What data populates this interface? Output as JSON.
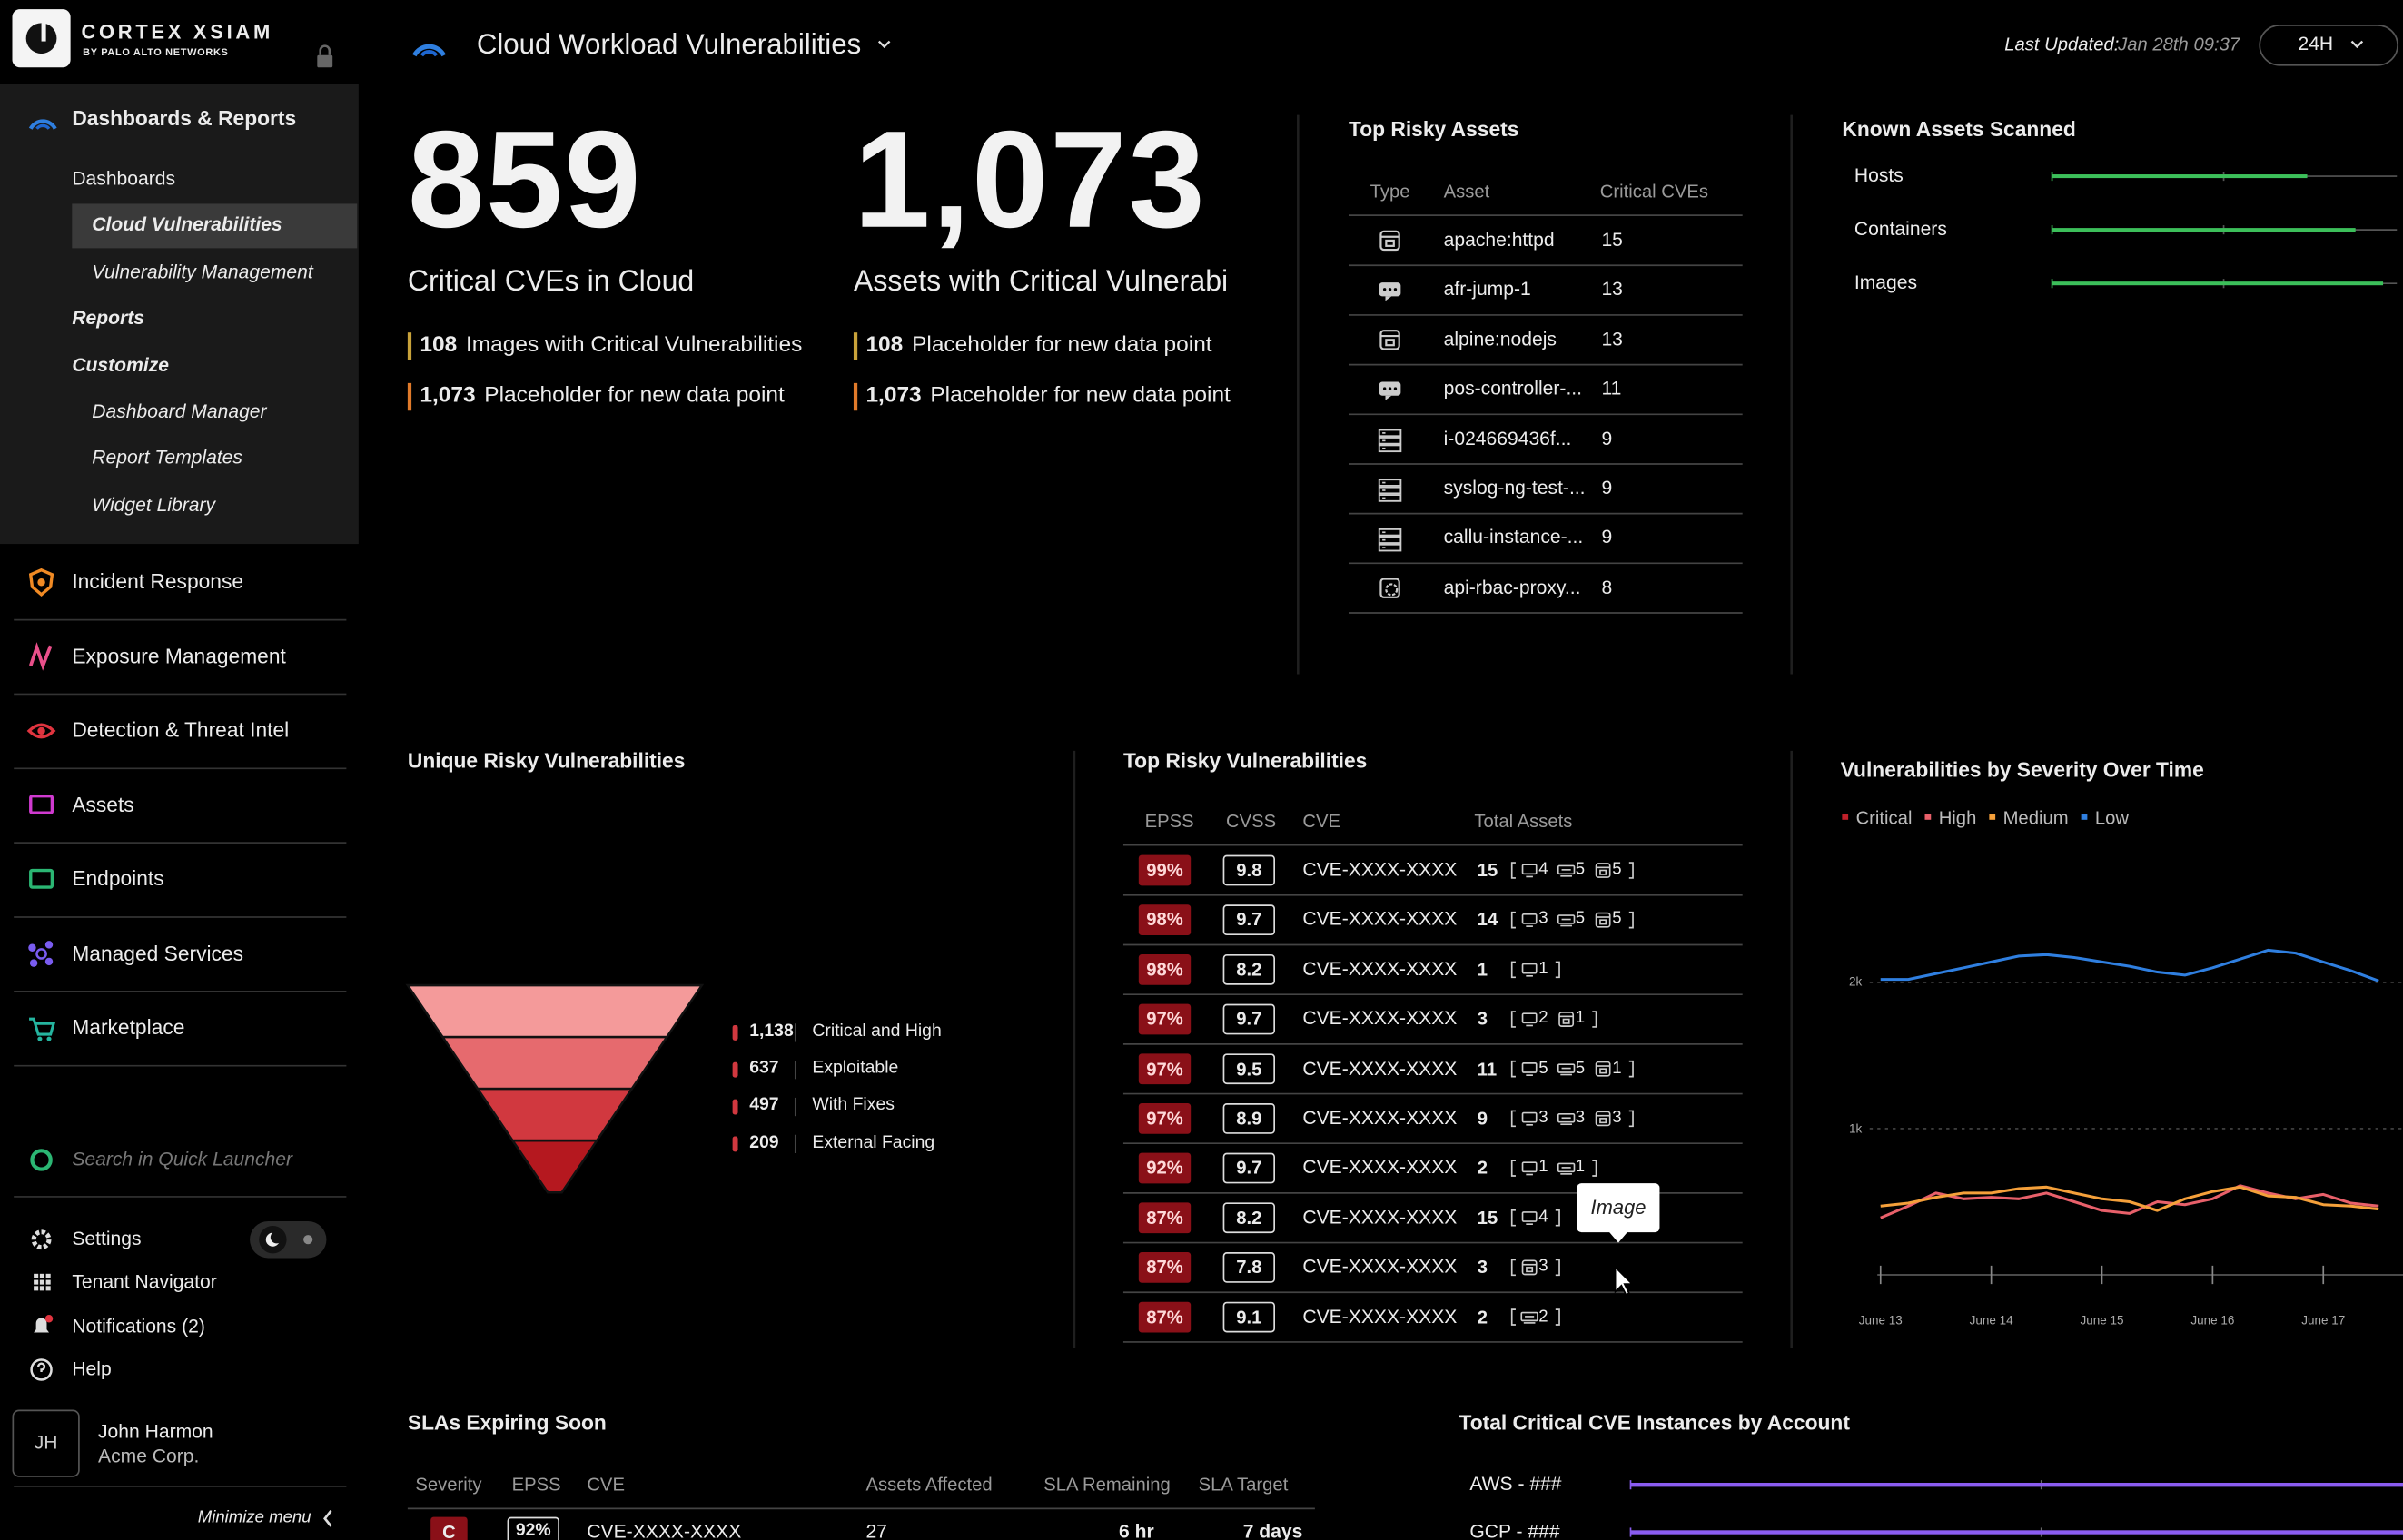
{
  "sidebar": {
    "brand": "CORTEX XSIAM",
    "brand_sub": "BY PALO ALTO NETWORKS",
    "section": "Dashboards & Reports",
    "sub_items": [
      "Dashboards",
      "Cloud Vulnerabilities",
      "Vulnerability Management",
      "Reports",
      "Customize",
      "Dashboard Manager",
      "Report Templates",
      "Widget Library"
    ],
    "nav": [
      "Incident Response",
      "Exposure Management",
      "Detection & Threat Intel",
      "Assets",
      "Endpoints",
      "Managed Services",
      "Marketplace"
    ],
    "search": "Search in Quick Launcher",
    "utilities": [
      "Settings",
      "Tenant Navigator",
      "Notifications (2)",
      "Help"
    ],
    "user": {
      "initials": "JH",
      "name": "John Harmon",
      "org": "Acme Corp."
    },
    "minimize": "Minimize menu"
  },
  "header": {
    "title": "Cloud Workload Vulnerabilities",
    "updated_label": "Last Updated:",
    "updated_value": "Jan 28th 09:37",
    "range": "24H"
  },
  "kpis": [
    {
      "value": "859",
      "label": "Critical CVEs in Cloud",
      "details": [
        {
          "value": "108",
          "label": "Images with Critical Vulnerabilities"
        },
        {
          "value": "1,073",
          "label": "Placeholder for new data point"
        }
      ]
    },
    {
      "value": "1,073",
      "label": "Assets with Critical Vulnerabi",
      "details": [
        {
          "value": "108",
          "label": "Placeholder for new data point"
        },
        {
          "value": "1,073",
          "label": "Placeholder for new data point"
        }
      ]
    }
  ],
  "top_risky_assets": {
    "title": "Top Risky Assets",
    "columns": [
      "Type",
      "Asset",
      "Critical CVEs"
    ],
    "rows": [
      [
        "apache:httpd",
        "15"
      ],
      [
        "afr-jump-1",
        "13"
      ],
      [
        "alpine:nodejs",
        "13"
      ],
      [
        "pos-controller-...",
        "11"
      ],
      [
        "i-024669436f...",
        "9"
      ],
      [
        "syslog-ng-test-...",
        "9"
      ],
      [
        "callu-instance-...",
        "9"
      ],
      [
        "api-rbac-proxy...",
        "8"
      ]
    ]
  },
  "known_assets": {
    "title": "Known Assets Scanned",
    "xlim": [
      0,
      100
    ],
    "items": [
      {
        "label": "Hosts",
        "value": 74
      },
      {
        "label": "Containers",
        "value": 88
      },
      {
        "label": "Images",
        "value": 96
      }
    ]
  },
  "funnel": {
    "title": "Unique Risky Vulnerabilities",
    "stages": [
      {
        "value": "1,138",
        "label": "Critical and High"
      },
      {
        "value": "637",
        "label": "Exploitable"
      },
      {
        "value": "497",
        "label": "With Fixes"
      },
      {
        "value": "209",
        "label": "External Facing"
      }
    ]
  },
  "top_vulns": {
    "title": "Top Risky Vulnerabilities",
    "columns": [
      "EPSS",
      "CVSS",
      "CVE",
      "Total Assets"
    ],
    "rows": [
      {
        "epss": "99%",
        "cvss": "9.8",
        "cve": "CVE-XXXX-XXXX",
        "total": "15",
        "hosts": "4",
        "services": "5",
        "images": "5"
      },
      {
        "epss": "98%",
        "cvss": "9.7",
        "cve": "CVE-XXXX-XXXX",
        "total": "14",
        "hosts": "3",
        "services": "5",
        "images": "5"
      },
      {
        "epss": "98%",
        "cvss": "8.2",
        "cve": "CVE-XXXX-XXXX",
        "total": "1",
        "hosts": "1"
      },
      {
        "epss": "97%",
        "cvss": "9.7",
        "cve": "CVE-XXXX-XXXX",
        "total": "3",
        "hosts": "2",
        "images": "1"
      },
      {
        "epss": "97%",
        "cvss": "9.5",
        "cve": "CVE-XXXX-XXXX",
        "total": "11",
        "hosts": "5",
        "services": "5",
        "images": "1"
      },
      {
        "epss": "97%",
        "cvss": "8.9",
        "cve": "CVE-XXXX-XXXX",
        "total": "9",
        "hosts": "3",
        "services": "3",
        "images": "3"
      },
      {
        "epss": "92%",
        "cvss": "9.7",
        "cve": "CVE-XXXX-XXXX",
        "total": "2",
        "hosts": "1",
        "services": "1"
      },
      {
        "epss": "87%",
        "cvss": "8.2",
        "cve": "CVE-XXXX-XXXX",
        "total": "15",
        "hosts": "4"
      },
      {
        "epss": "87%",
        "cvss": "7.8",
        "cve": "CVE-XXXX-XXXX",
        "total": "3",
        "images": "3"
      },
      {
        "epss": "87%",
        "cvss": "9.1",
        "cve": "CVE-XXXX-XXXX",
        "total": "2",
        "services": "2"
      }
    ],
    "tooltip": "Image"
  },
  "severity_chart": {
    "type": "line",
    "title": "Vulnerabilities by Severity Over Time",
    "x": [
      13,
      13.25,
      13.5,
      13.75,
      14,
      14.25,
      14.5,
      14.75,
      15,
      15.25,
      15.5,
      15.75,
      16,
      16.25,
      16.5,
      16.75,
      17,
      17.25,
      17.5
    ],
    "xlim": [
      12.86,
      17.72
    ],
    "xticks": [
      {
        "value": 13,
        "label": "June 13"
      },
      {
        "value": 14,
        "label": "June 14"
      },
      {
        "value": 15,
        "label": "June 15"
      },
      {
        "value": 16,
        "label": "June 16"
      },
      {
        "value": 17,
        "label": "June 17"
      }
    ],
    "ylim": [
      0,
      2850
    ],
    "yticks": [
      {
        "value": 1000,
        "label": "1k"
      },
      {
        "value": 2000,
        "label": "2k"
      }
    ],
    "grid": true,
    "series": [
      {
        "name": "Critical",
        "color": "#c0202a",
        "values": [
          null,
          null,
          null,
          null,
          null,
          null,
          null,
          null,
          null,
          null,
          null,
          null,
          null,
          null,
          null,
          null,
          null,
          null,
          null
        ]
      },
      {
        "name": "High",
        "color": "#e8606a",
        "values": [
          390,
          470,
          560,
          520,
          530,
          520,
          560,
          500,
          440,
          420,
          500,
          480,
          520,
          610,
          560,
          520,
          550,
          490,
          470
        ]
      },
      {
        "name": "Medium",
        "color": "#f5a03a",
        "values": [
          470,
          490,
          530,
          560,
          560,
          590,
          600,
          560,
          520,
          500,
          440,
          520,
          570,
          600,
          540,
          530,
          480,
          470,
          450
        ]
      },
      {
        "name": "Low",
        "color": "#2f7fe0",
        "values": [
          2020,
          2020,
          2060,
          2100,
          2140,
          2180,
          2190,
          2170,
          2140,
          2110,
          2070,
          2050,
          2100,
          2160,
          2220,
          2200,
          2140,
          2080,
          2010
        ]
      }
    ]
  },
  "slas": {
    "title": "SLAs Expiring Soon",
    "columns": [
      "Severity",
      "EPSS",
      "CVE",
      "Assets Affected",
      "SLA Remaining",
      "SLA Target"
    ],
    "rows": [
      [
        "C",
        "92%",
        "CVE-XXXX-XXXX",
        "27",
        "6 hr",
        "7 days"
      ]
    ]
  },
  "accounts": {
    "title": "Total Critical CVE Instances by Account",
    "xlim": [
      0,
      100
    ],
    "items": [
      {
        "label": "AWS - ###",
        "value": 100
      },
      {
        "label": "GCP - ###",
        "value": 100
      }
    ]
  }
}
